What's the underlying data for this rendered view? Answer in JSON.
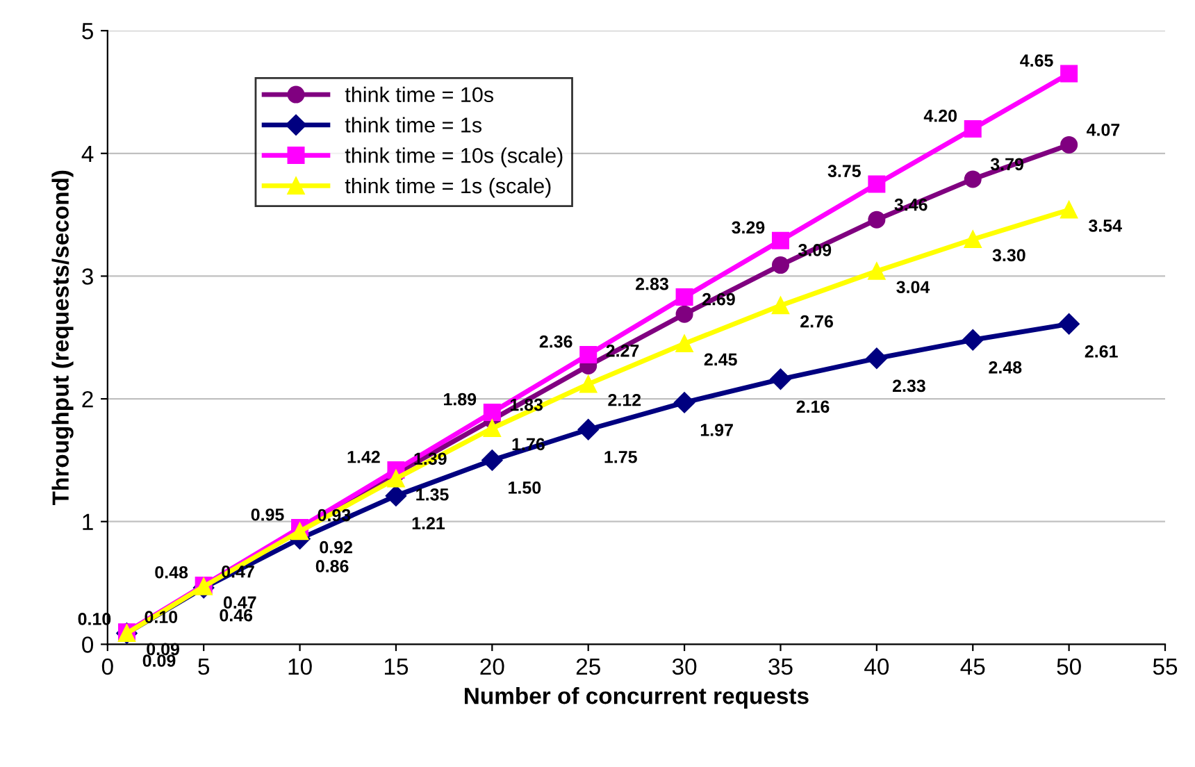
{
  "chart_data": {
    "type": "line",
    "xlabel": "Number of concurrent requests",
    "ylabel": "Throughput (requests/second)",
    "x": [
      1,
      5,
      10,
      15,
      20,
      25,
      30,
      35,
      40,
      45,
      50
    ],
    "series": [
      {
        "name": "think time = 10s",
        "color": "#800080",
        "marker": "circle",
        "values": [
          0.1,
          0.47,
          0.93,
          1.39,
          1.83,
          2.27,
          2.69,
          3.09,
          3.46,
          3.79,
          4.07
        ],
        "value_labels": [
          "0.10",
          "0.47",
          "0.93",
          "1.39",
          "1.83",
          "2.27",
          "2.69",
          "3.09",
          "3.46",
          "3.79",
          "4.07"
        ]
      },
      {
        "name": "think time = 1s",
        "color": "#000080",
        "marker": "diamond",
        "values": [
          0.09,
          0.46,
          0.86,
          1.21,
          1.5,
          1.75,
          1.97,
          2.16,
          2.33,
          2.48,
          2.61
        ],
        "value_labels": [
          "0.09",
          "0.46",
          "0.86",
          "1.21",
          "1.50",
          "1.75",
          "1.97",
          "2.16",
          "2.33",
          "2.48",
          "2.61"
        ]
      },
      {
        "name": "think time = 10s (scale)",
        "color": "#ff00ff",
        "marker": "square",
        "values": [
          0.1,
          0.48,
          0.95,
          1.42,
          1.89,
          2.36,
          2.83,
          3.29,
          3.75,
          4.2,
          4.65
        ],
        "value_labels": [
          "0.10",
          "0.48",
          "0.95",
          "1.42",
          "1.89",
          "2.36",
          "2.83",
          "3.29",
          "3.75",
          "4.20",
          "4.65"
        ]
      },
      {
        "name": "think time = 1s (scale)",
        "color": "#ffff00",
        "marker": "triangle",
        "values": [
          0.09,
          0.47,
          0.92,
          1.35,
          1.76,
          2.12,
          2.45,
          2.76,
          3.04,
          3.3,
          3.54
        ],
        "value_labels": [
          "0.09",
          "0.47",
          "0.92",
          "1.35",
          "1.76",
          "2.12",
          "2.45",
          "2.76",
          "3.04",
          "3.30",
          "3.54"
        ]
      }
    ],
    "xlim": [
      0,
      55
    ],
    "xticks": [
      0,
      5,
      10,
      15,
      20,
      25,
      30,
      35,
      40,
      45,
      50,
      55
    ],
    "ylim": [
      0,
      5
    ],
    "yticks": [
      0,
      1,
      2,
      3,
      4,
      5
    ],
    "grid": "y",
    "legend": "top left",
    "line_style": "solid"
  }
}
